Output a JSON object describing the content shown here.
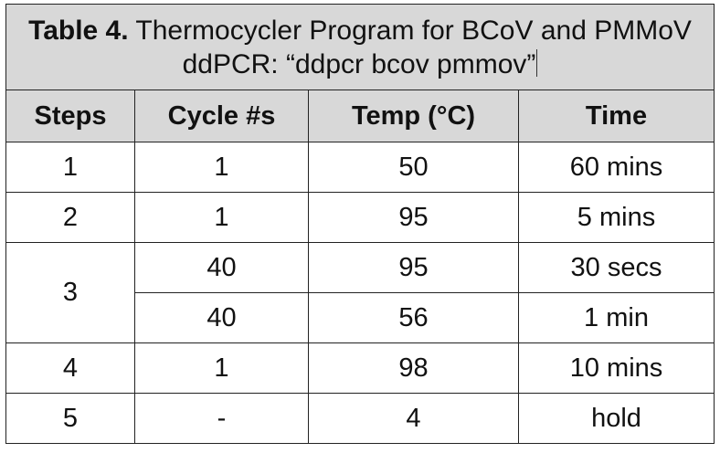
{
  "table": {
    "title_bold": "Table 4.",
    "title_rest": " Thermocycler Program for BCoV and PMMoV ddPCR: “ddpcr bcov pmmov”",
    "headers": [
      "Steps",
      "Cycle #s",
      "Temp (°C)",
      "Time"
    ],
    "rows": [
      {
        "step": "1",
        "cycles": "1",
        "temp": "50",
        "time": "60 mins"
      },
      {
        "step": "2",
        "cycles": "1",
        "temp": "95",
        "time": "5 mins"
      },
      {
        "step": "3",
        "cycles": "40",
        "temp": "95",
        "time": "30 secs"
      },
      {
        "step": "",
        "cycles": "40",
        "temp": "56",
        "time": "1 min"
      },
      {
        "step": "4",
        "cycles": "1",
        "temp": "98",
        "time": "10 mins"
      },
      {
        "step": "5",
        "cycles": "-",
        "temp": "4",
        "time": "hold"
      }
    ]
  }
}
